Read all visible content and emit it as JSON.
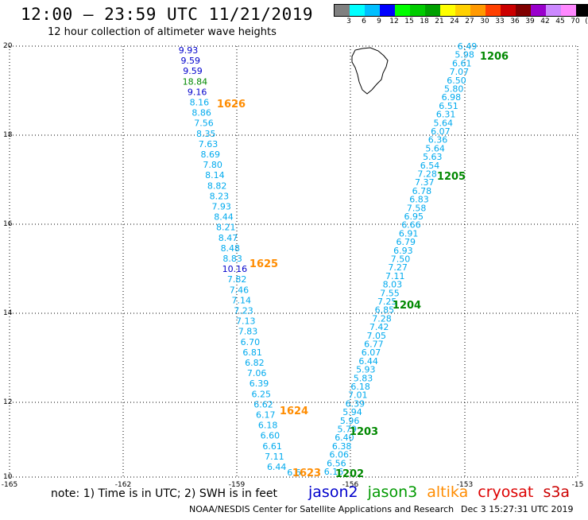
{
  "header": {
    "title": "12:00 – 23:59 UTC 11/21/2019",
    "subtitle": "12 hour collection of altimeter wave heights"
  },
  "colorbar": {
    "colors": [
      "#808080",
      "#00ffff",
      "#00bfff",
      "#0000ff",
      "#00ff00",
      "#00cc00",
      "#00a000",
      "#ffff00",
      "#ffd000",
      "#ff9900",
      "#ff4000",
      "#cc0000",
      "#800000",
      "#9900cc",
      "#cc88ff",
      "#ff88ff",
      "#000000"
    ],
    "labels": [
      "3",
      "6",
      "9",
      "12",
      "15",
      "18",
      "21",
      "24",
      "27",
      "30",
      "33",
      "36",
      "39",
      "42",
      "45",
      "70",
      "(ft)"
    ]
  },
  "axes": {
    "x_ticks": [
      "-165",
      "-162",
      "-159",
      "-156",
      "-153",
      "-15"
    ],
    "y_ticks": [
      "20",
      "18",
      "16",
      "14",
      "12",
      "10"
    ]
  },
  "colors": {
    "jason3": "#00aaee",
    "jason2": "#0000cc",
    "high": "#008800",
    "altika": "#ff8c00",
    "cryosat": "#dd0000",
    "s3a": "#dd0000",
    "hour_green": "#008800"
  },
  "track_west": {
    "values": [
      "9.93",
      "9.59",
      "9.59",
      "18.84",
      "9.16",
      "8.16",
      "8.86",
      "7.56",
      "8.35",
      "7.63",
      "8.69",
      "7.80",
      "8.14",
      "8.82",
      "8.23",
      "7.93",
      "8.44",
      "8.21",
      "8.47",
      "8.48",
      "8.83",
      "10.16",
      "7.82",
      "7.46",
      "7.14",
      "7.23",
      "7.13",
      "7.83",
      "6.70",
      "6.81",
      "6.82",
      "7.06",
      "6.39",
      "6.25",
      "6.62",
      "6.17",
      "6.18",
      "6.60",
      "6.61",
      "7.11",
      "6.44",
      "6.6"
    ],
    "colors": [
      "jason2",
      "jason2",
      "jason2",
      "high",
      "jason2",
      "jason3",
      "jason3",
      "jason3",
      "jason3",
      "jason3",
      "jason3",
      "jason3",
      "jason3",
      "jason3",
      "jason3",
      "jason3",
      "jason3",
      "jason3",
      "jason3",
      "jason3",
      "jason3",
      "jason2",
      "jason3",
      "jason3",
      "jason3",
      "jason3",
      "jason3",
      "jason3",
      "jason3",
      "jason3",
      "jason3",
      "jason3",
      "jason3",
      "jason3",
      "jason3",
      "jason3",
      "jason3",
      "jason3",
      "jason3",
      "jason3",
      "jason3",
      "jason3"
    ]
  },
  "track_east": {
    "values": [
      "6.49",
      "5.98",
      "6.61",
      "7.07",
      "6.50",
      "5.80",
      "6.98",
      "6.51",
      "6.31",
      "5.64",
      "6.07",
      "6.36",
      "5.64",
      "5.63",
      "6.54",
      "7.28",
      "7.37",
      "6.78",
      "6.83",
      "7.58",
      "6.95",
      "6.66",
      "6.91",
      "6.79",
      "6.93",
      "7.50",
      "7.27",
      "7.11",
      "8.03",
      "7.55",
      "7.25",
      "6.85",
      "7.28",
      "7.42",
      "7.05",
      "6.77",
      "6.07",
      "6.44",
      "5.93",
      "5.83",
      "6.18",
      "7.01",
      "6.39",
      "5.94",
      "5.96",
      "5.79",
      "6.40",
      "6.38",
      "6.06",
      "6.56",
      "6.16"
    ]
  },
  "time_labels_west": [
    "1626",
    "1625",
    "1624",
    "1623"
  ],
  "time_labels_east": [
    "1206",
    "1205",
    "1204",
    "1203",
    "1202"
  ],
  "note": "note: 1) Time is in UTC; 2) SWH is in feet",
  "sat_legend": {
    "jason2": "jason2",
    "jason3": "jason3",
    "altika": "altika",
    "cryosat": "cryosat",
    "s3a": "s3a"
  },
  "credit": "NOAA/NESDIS Center for Satellite Applications and Research",
  "timestamp": "Dec  3 15:27:31 UTC 2019"
}
